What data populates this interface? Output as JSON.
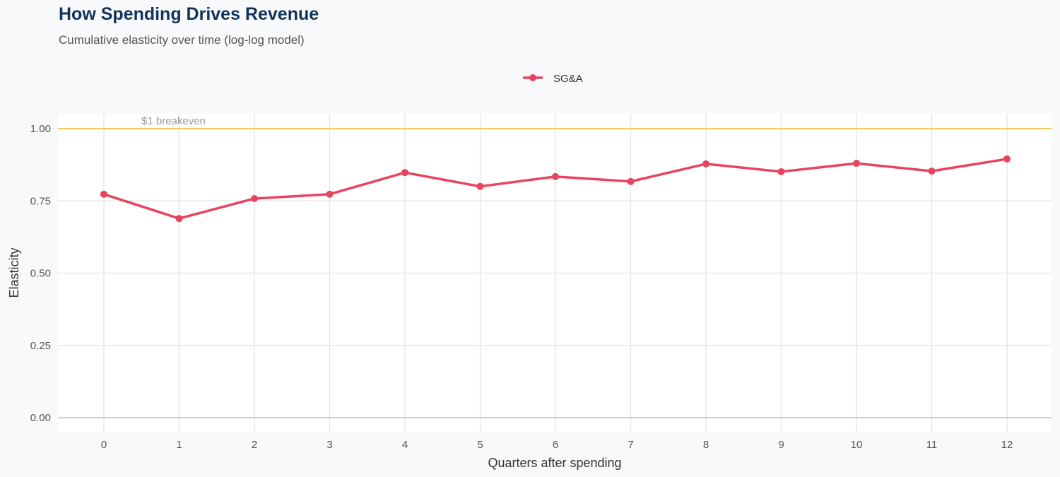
{
  "chart_data": {
    "type": "line",
    "title": "How Spending Drives Revenue",
    "subtitle": "Cumulative elasticity over time (log-log model)",
    "xlabel": "Quarters after spending",
    "ylabel": "Elasticity",
    "x": [
      0,
      1,
      2,
      3,
      4,
      5,
      6,
      7,
      8,
      9,
      10,
      11,
      12
    ],
    "xlim": [
      -0.6,
      12.6
    ],
    "ylim": [
      -0.05,
      1.05
    ],
    "yticks": [
      "0.00",
      "0.25",
      "0.50",
      "0.75",
      "1.00"
    ],
    "grid": true,
    "legend": "top",
    "series": [
      {
        "name": "SG&A",
        "color": "#e8445f",
        "values": [
          0.773,
          0.689,
          0.758,
          0.773,
          0.848,
          0.8,
          0.834,
          0.817,
          0.878,
          0.851,
          0.88,
          0.853,
          0.895
        ]
      }
    ],
    "reference_line": {
      "y": 1.0,
      "label": "$1 breakeven",
      "color": "#f5c75c"
    }
  }
}
